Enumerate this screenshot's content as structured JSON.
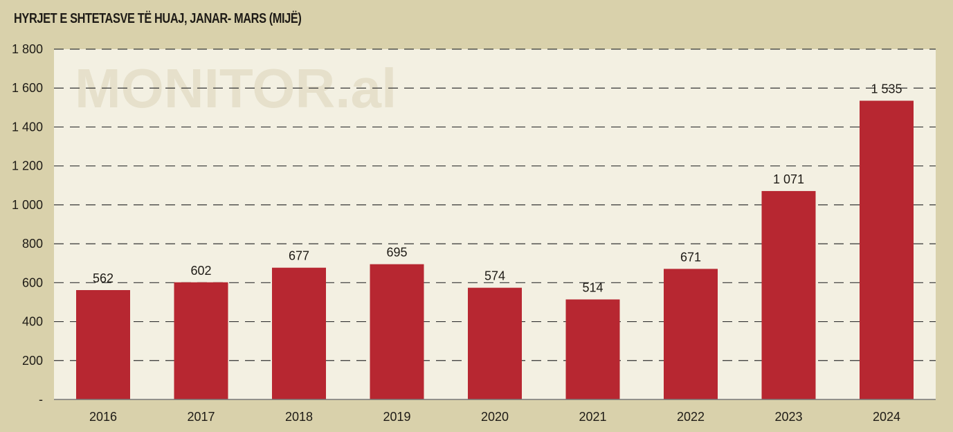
{
  "chart_data": {
    "type": "bar",
    "title": "HYRJET E SHTETASVE TË HUAJ, JANAR- MARS (MIJË)",
    "watermark": "MONITOR.al",
    "categories": [
      "2016",
      "2017",
      "2018",
      "2019",
      "2020",
      "2021",
      "2022",
      "2023",
      "2024"
    ],
    "values": [
      562,
      602,
      677,
      695,
      574,
      514,
      671,
      1071,
      1535
    ],
    "data_labels": [
      "562",
      "602",
      "677",
      "695",
      "574",
      "514",
      "671",
      "1 071",
      "1 535"
    ],
    "ylim": [
      0,
      1800
    ],
    "yticks": [
      0,
      200,
      400,
      600,
      800,
      1000,
      1200,
      1400,
      1600,
      1800
    ],
    "ytick_labels": [
      "-",
      "200",
      "400",
      "600",
      "800",
      "1 000",
      "1 200",
      "1 400",
      "1 600",
      "1 800"
    ],
    "xlabel": "",
    "ylabel": "",
    "grid": true,
    "colors": {
      "bar": "#b72731",
      "plot_bg": "#f3f0e2",
      "bg": "#d9d1ab"
    }
  }
}
